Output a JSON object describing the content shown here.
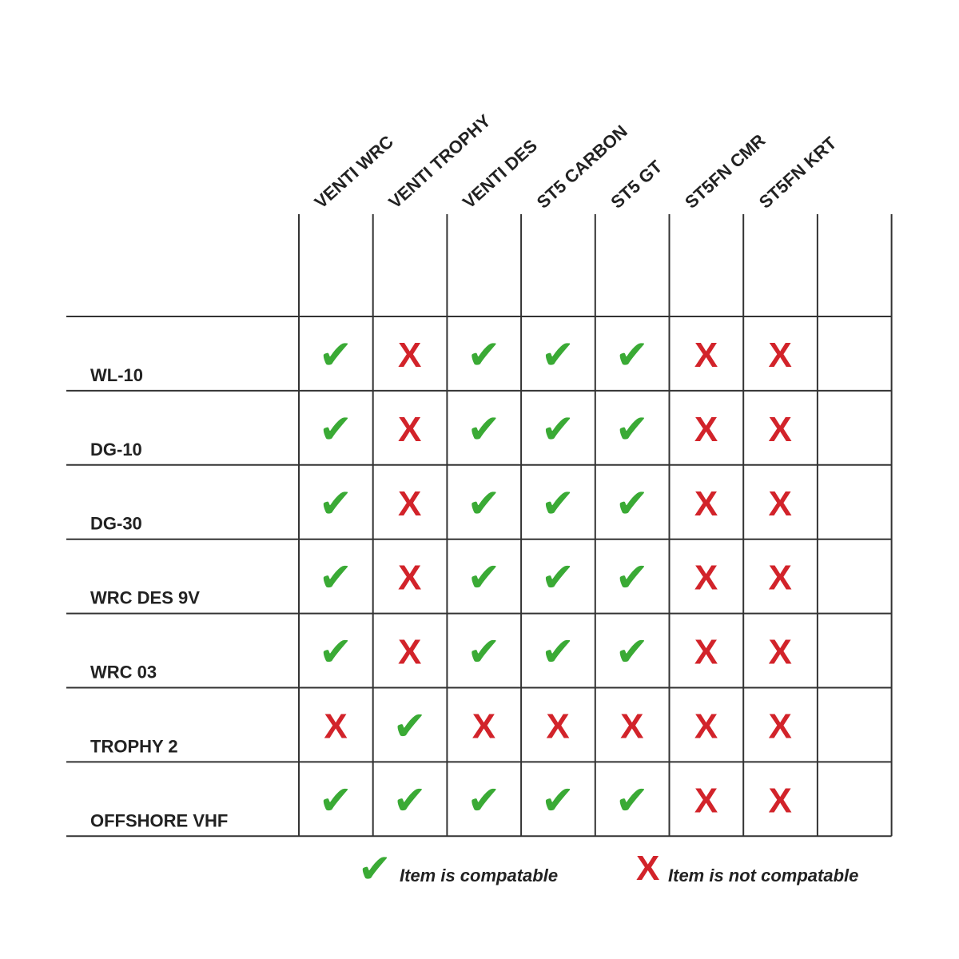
{
  "columns": [
    "VENTI WRC",
    "VENTI TROPHY",
    "VENTI DES",
    "ST5 CARBON",
    "ST5 GT",
    "ST5FN CMR",
    "ST5FN KRT"
  ],
  "rows": [
    {
      "label": "WL-10",
      "cells": [
        "✔",
        "X",
        "✔",
        "✔",
        "✔",
        "X",
        "X"
      ]
    },
    {
      "label": "DG-10",
      "cells": [
        "✔",
        "X",
        "✔",
        "✔",
        "✔",
        "X",
        "X"
      ]
    },
    {
      "label": "DG-30",
      "cells": [
        "✔",
        "X",
        "✔",
        "✔",
        "✔",
        "X",
        "X"
      ]
    },
    {
      "label": "WRC DES 9V",
      "cells": [
        "✔",
        "X",
        "✔",
        "✔",
        "✔",
        "X",
        "X"
      ]
    },
    {
      "label": "WRC 03",
      "cells": [
        "✔",
        "X",
        "✔",
        "✔",
        "✔",
        "X",
        "X"
      ]
    },
    {
      "label": "TROPHY 2",
      "cells": [
        "X",
        "✔",
        "X",
        "X",
        "X",
        "X",
        "X"
      ]
    },
    {
      "label": "OFFSHORE VHF",
      "cells": [
        "✔",
        "✔",
        "✔",
        "✔",
        "✔",
        "X",
        "X"
      ]
    }
  ],
  "legend": [
    {
      "symbol": "✔",
      "label": "Item is compatable",
      "color": "#3aaa35"
    },
    {
      "symbol": "X",
      "label": "Item is not compatable",
      "color": "#d2232a"
    }
  ]
}
